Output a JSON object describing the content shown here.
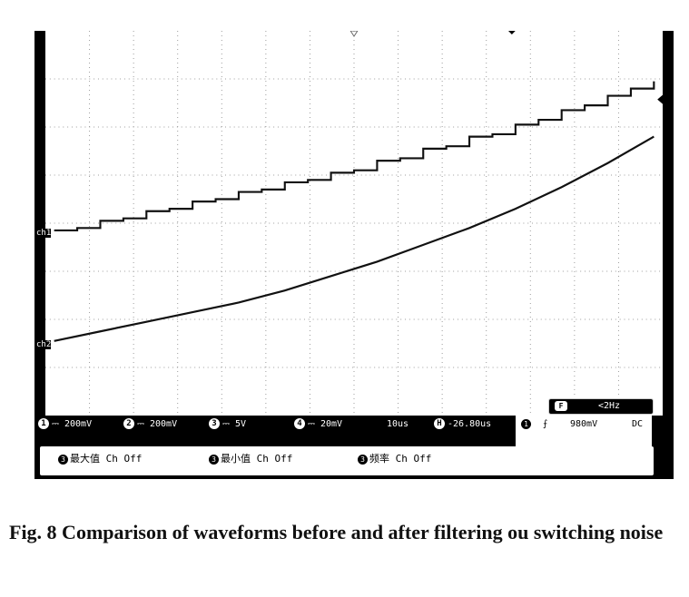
{
  "chart_data": {
    "type": "line",
    "title": "",
    "xlabel": "",
    "ylabel": "",
    "series": [
      {
        "name": "ch1",
        "description_kind": "staircase",
        "x": [
          0,
          0.5,
          1,
          1.5,
          2,
          2.5,
          3,
          3.5,
          4,
          4.5,
          5,
          5.5,
          6,
          6.5,
          7,
          7.5,
          8,
          8.5,
          9,
          9.5,
          10,
          10.5,
          11,
          11.5,
          12,
          12.5,
          13
        ],
        "y": [
          3.85,
          3.9,
          4.05,
          4.1,
          4.25,
          4.3,
          4.45,
          4.5,
          4.65,
          4.7,
          4.85,
          4.9,
          5.05,
          5.1,
          5.3,
          5.35,
          5.55,
          5.6,
          5.8,
          5.85,
          6.05,
          6.15,
          6.35,
          6.45,
          6.65,
          6.8,
          6.95
        ]
      },
      {
        "name": "ch2",
        "description_kind": "smooth",
        "x": [
          0,
          1,
          2,
          3,
          4,
          5,
          6,
          7,
          8,
          9,
          10,
          11,
          12,
          13
        ],
        "y": [
          1.55,
          1.75,
          1.95,
          2.15,
          2.35,
          2.6,
          2.9,
          3.2,
          3.55,
          3.9,
          4.3,
          4.75,
          5.25,
          5.8
        ]
      }
    ],
    "xlim": [
      0,
      13
    ],
    "ylim": [
      0,
      8
    ],
    "grid": true
  },
  "scope": {
    "ch1_marker": "ch1",
    "ch2_marker": "ch2",
    "status": [
      {
        "num": "1",
        "value": "⎓ 200mV"
      },
      {
        "num": "2",
        "value": "⎓ 200mV"
      },
      {
        "num": "3",
        "value": "⎓  5V"
      },
      {
        "num": "4",
        "value": "⎓ 20mV"
      }
    ],
    "timebase": "10us",
    "h_badge": "H",
    "delay": "-26.80us",
    "trigger": {
      "num": "1",
      "slope": "⨍",
      "level": "980mV",
      "coupling": "DC"
    },
    "freq": {
      "badge": "F",
      "label": "<2Hz"
    },
    "measurements": [
      {
        "num": "3",
        "label": "最大值 Ch Off"
      },
      {
        "num": "3",
        "label": "最小值 Ch Off"
      },
      {
        "num": "3",
        "label": "频率 Ch Off"
      }
    ]
  },
  "caption": {
    "text": "Fig. 8    Comparison of waveforms before and after filtering ou switching noise"
  }
}
